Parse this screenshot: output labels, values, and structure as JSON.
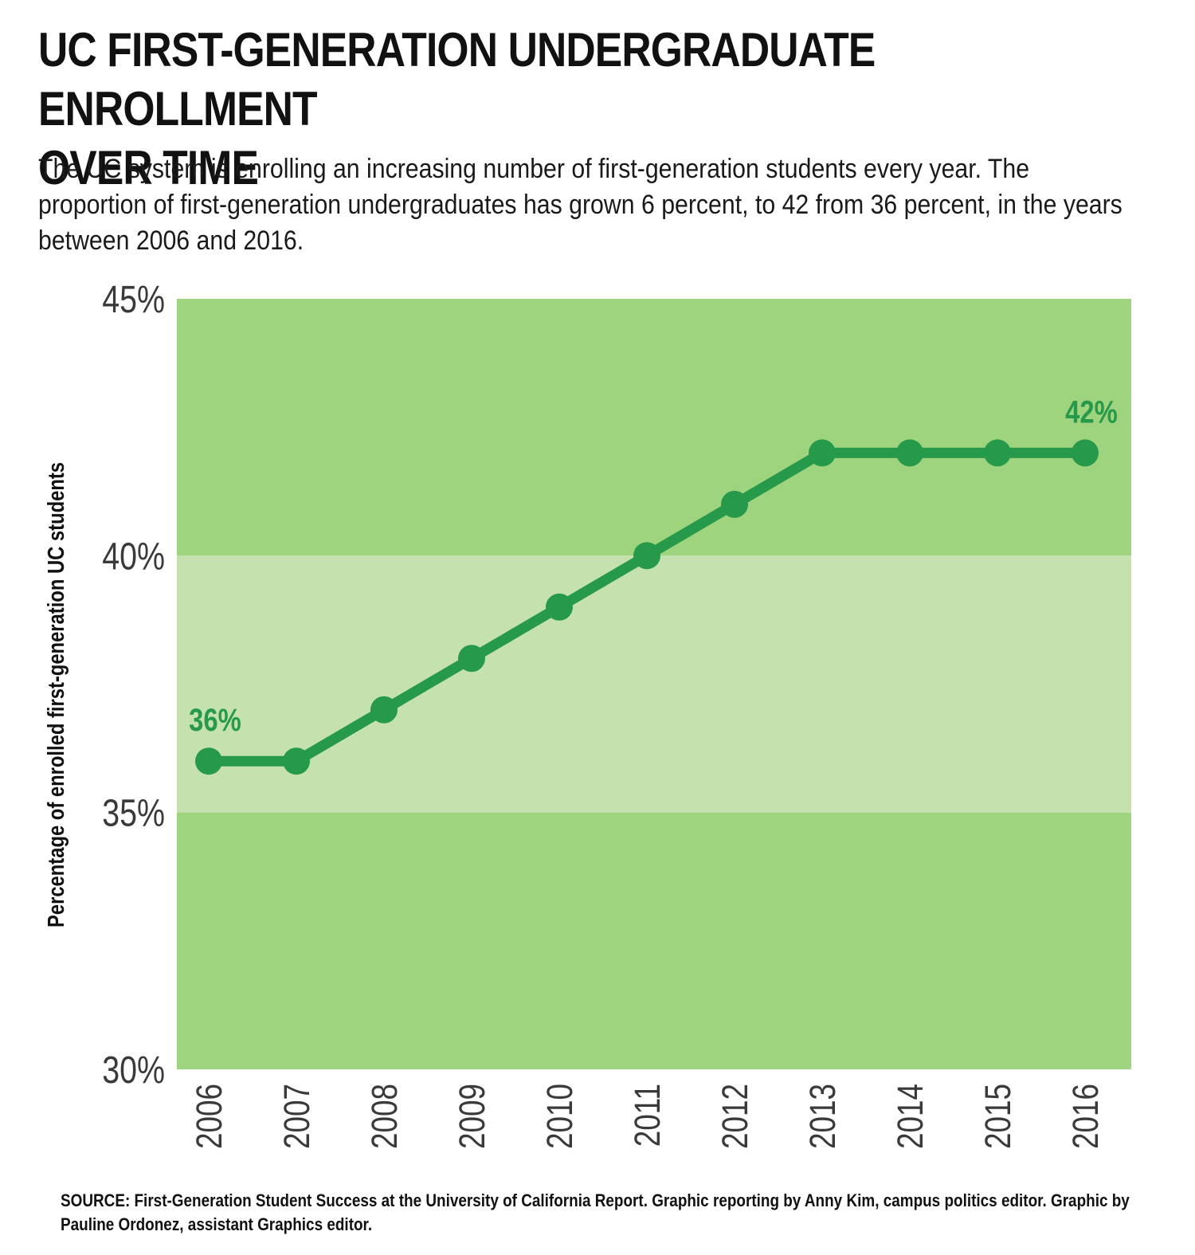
{
  "header": {
    "title": "UC FIRST-GENERATION UNDERGRADUATE ENROLLMENT\nOVER TIME",
    "subtitle": "The UC system is enrolling an increasing number of first-generation students every year. The proportion of first-generation undergraduates has grown 6 percent, to 42 from 36 percent, in the years between 2006 and 2016."
  },
  "footer": {
    "source": "SOURCE: First-Generation Student Success at the University of California Report. Graphic reporting by Anny Kim, campus politics editor. Graphic by Pauline Ordonez, assistant Graphics editor."
  },
  "colors": {
    "band_dark": "#9dd47d",
    "band_light": "#c5e2ae",
    "line": "#27994a",
    "annotation": "#27994a",
    "tick_text": "#3a3a3a"
  },
  "chart_data": {
    "type": "line",
    "title": "UC FIRST-GENERATION UNDERGRADUATE ENROLLMENT OVER TIME",
    "xlabel": "",
    "ylabel": "Percentage of enrolled first-generation UC students",
    "x": [
      "2006",
      "2007",
      "2008",
      "2009",
      "2010",
      "2011",
      "2012",
      "2013",
      "2014",
      "2015",
      "2016"
    ],
    "series": [
      {
        "values": [
          36,
          36,
          37,
          38,
          39,
          40,
          41,
          42,
          42,
          42,
          42
        ]
      }
    ],
    "ylim": [
      30,
      45
    ],
    "yticks": [
      {
        "value": 45,
        "label": "45%"
      },
      {
        "value": 40,
        "label": "40%"
      },
      {
        "value": 35,
        "label": "35%"
      },
      {
        "value": 30,
        "label": "30%"
      }
    ],
    "bands": [
      {
        "from": 40,
        "to": 45,
        "shade": "dark"
      },
      {
        "from": 35,
        "to": 40,
        "shade": "light"
      },
      {
        "from": 30,
        "to": 35,
        "shade": "dark"
      }
    ],
    "annotations": [
      {
        "index": 0,
        "label": "36%"
      },
      {
        "index": 10,
        "label": "42%"
      }
    ],
    "grid": false,
    "legend": "none"
  }
}
